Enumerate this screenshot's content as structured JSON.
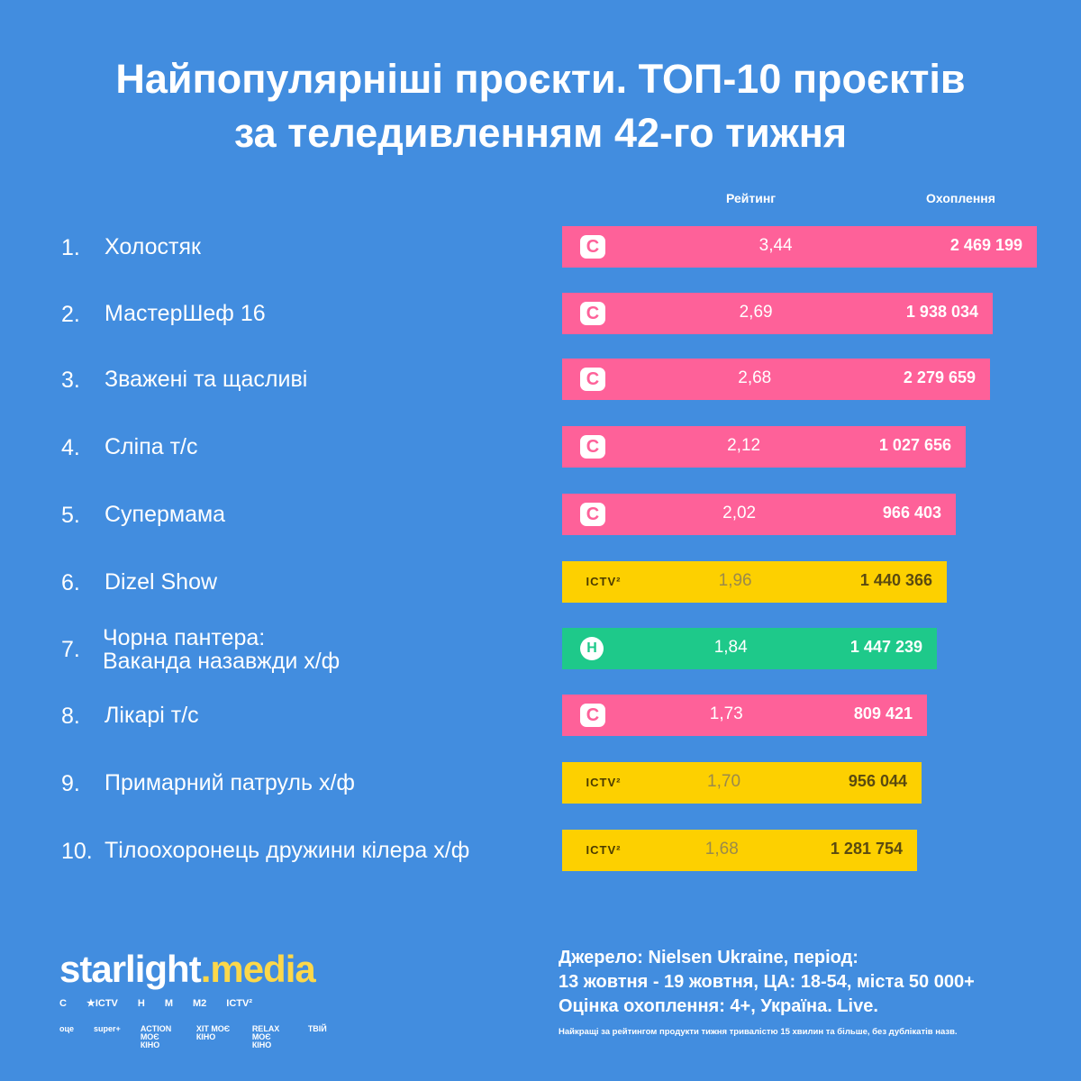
{
  "title": {
    "line1": "Найпопулярніші проєкти. ТОП-10 проєктів",
    "line2": "за теледивленням 42-го тижня"
  },
  "columns": {
    "rating": "Рейтинг",
    "reach": "Охоплення"
  },
  "rows": [
    {
      "rank": "1.",
      "name": "Холостяк",
      "channel": "С",
      "rating": "3,44",
      "reach": "2 469 199"
    },
    {
      "rank": "2.",
      "name": "МастерШеф 16",
      "channel": "С",
      "rating": "2,69",
      "reach": "1 938 034"
    },
    {
      "rank": "3.",
      "name": "Зважені та щасливі",
      "channel": "С",
      "rating": "2,68",
      "reach": "2 279 659"
    },
    {
      "rank": "4.",
      "name": "Сліпа т/с",
      "channel": "С",
      "rating": "2,12",
      "reach": "1 027 656"
    },
    {
      "rank": "5.",
      "name": "Супермама",
      "channel": "С",
      "rating": "2,02",
      "reach": "966 403"
    },
    {
      "rank": "6.",
      "name": "Dizel Show",
      "channel": "ICTV²",
      "rating": "1,96",
      "reach": "1 440 366"
    },
    {
      "rank": "7.",
      "name": "Чорна пантера:",
      "name2": "Ваканда назавжди х/ф",
      "channel": "Н",
      "rating": "1,84",
      "reach": "1 447 239"
    },
    {
      "rank": "8.",
      "name": "Лікарі т/с",
      "channel": "С",
      "rating": "1,73",
      "reach": "809 421"
    },
    {
      "rank": "9.",
      "name": "Примарний патруль х/ф",
      "channel": "ICTV²",
      "rating": "1,70",
      "reach": "956 044"
    },
    {
      "rank": "10.",
      "name": "Тілоохоронець дружини кілера х/ф",
      "channel": "ICTV²",
      "rating": "1,68",
      "reach": "1 281 754"
    }
  ],
  "footer": {
    "brand1": "starlight",
    "brand2": ".media",
    "channels1": [
      "С",
      "★ICTV",
      "Н",
      "М",
      "М2",
      "ICTV²"
    ],
    "channels2": [
      "оце",
      "super+",
      "ACTION МОЄ КІНО",
      "ХІТ МОЄ КІНО",
      "RELAX МОЄ КІНО",
      "ТВІЙ"
    ],
    "source1": "Джерело: Nielsen Ukraine, період:",
    "source2": "13 жовтня - 19 жовтня, ЦА: 18-54, міста 50 000+",
    "source3": "Оцінка охоплення: 4+, Україна. Live.",
    "note": "Найкращі за рейтингом продукти тижня тривалістю 15 хвилин та більше, без дублікатів назв."
  },
  "colors": {
    "background": "#428ddf",
    "pink": "#fe6199",
    "yellow": "#fdd000",
    "green": "#1ec98a"
  }
}
